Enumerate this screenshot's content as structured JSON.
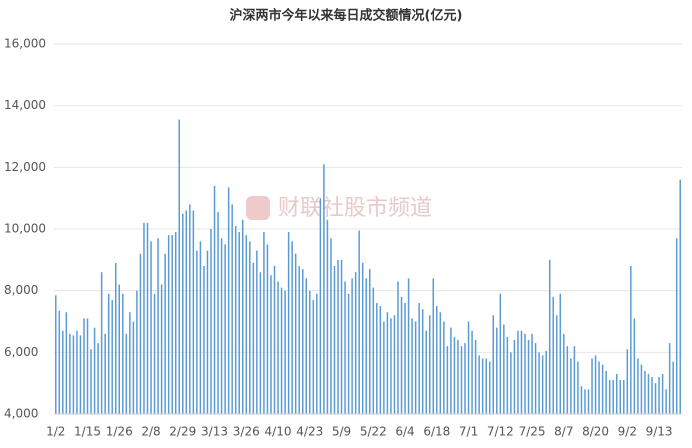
{
  "chart_data": {
    "type": "bar",
    "title": "沪深两市今年以来每日成交额情况(亿元)",
    "watermark": "财联社股市频道",
    "color": "#5b9bd5",
    "grid": true,
    "ylim": [
      4000,
      16000
    ],
    "yticks": [
      {
        "value": 4000,
        "label": "4,000"
      },
      {
        "value": 6000,
        "label": "6,000"
      },
      {
        "value": 8000,
        "label": "8,000"
      },
      {
        "value": 10000,
        "label": "10,000"
      },
      {
        "value": 12000,
        "label": "12,000"
      },
      {
        "value": 14000,
        "label": "14,000"
      },
      {
        "value": 16000,
        "label": "16,000"
      }
    ],
    "categories": [
      "1/2",
      null,
      null,
      null,
      null,
      null,
      null,
      null,
      null,
      "1/15",
      null,
      null,
      null,
      null,
      null,
      null,
      null,
      null,
      "1/26",
      null,
      null,
      null,
      null,
      null,
      null,
      null,
      null,
      "2/8",
      null,
      null,
      null,
      null,
      null,
      null,
      null,
      null,
      "2/29",
      null,
      null,
      null,
      null,
      null,
      null,
      null,
      null,
      "3/13",
      null,
      null,
      null,
      null,
      null,
      null,
      null,
      null,
      "3/26",
      null,
      null,
      null,
      null,
      null,
      null,
      null,
      null,
      "4/10",
      null,
      null,
      null,
      null,
      null,
      null,
      null,
      null,
      "4/23",
      null,
      null,
      null,
      null,
      null,
      null,
      null,
      null,
      "5/9",
      null,
      null,
      null,
      null,
      null,
      null,
      null,
      null,
      "5/22",
      null,
      null,
      null,
      null,
      null,
      null,
      null,
      null,
      "6/4",
      null,
      null,
      null,
      null,
      null,
      null,
      null,
      null,
      "6/18",
      null,
      null,
      null,
      null,
      null,
      null,
      null,
      null,
      "7/1",
      null,
      null,
      null,
      null,
      null,
      null,
      null,
      null,
      "7/12",
      null,
      null,
      null,
      null,
      null,
      null,
      null,
      null,
      "7/25",
      null,
      null,
      null,
      null,
      null,
      null,
      null,
      null,
      "8/7",
      null,
      null,
      null,
      null,
      null,
      null,
      null,
      null,
      "8/20",
      null,
      null,
      null,
      null,
      null,
      null,
      null,
      null,
      "9/2",
      null,
      null,
      null,
      null,
      null,
      null,
      null,
      null,
      "9/13",
      null,
      null,
      null,
      null,
      null,
      null
    ],
    "values": [
      7850,
      7350,
      6700,
      7300,
      6600,
      6550,
      6700,
      6550,
      7100,
      7100,
      6100,
      6800,
      6300,
      8600,
      6600,
      7900,
      7700,
      8900,
      8200,
      7900,
      6600,
      7300,
      7000,
      8000,
      9200,
      10200,
      10200,
      9600,
      7900,
      9700,
      8200,
      9200,
      9800,
      9800,
      9900,
      13550,
      10500,
      10600,
      10800,
      10600,
      9300,
      9600,
      8800,
      9300,
      10000,
      11400,
      10550,
      9700,
      9500,
      11350,
      10800,
      10100,
      9900,
      10300,
      9800,
      9600,
      8900,
      9300,
      8600,
      9900,
      9500,
      8500,
      8800,
      8300,
      8100,
      8000,
      9900,
      9600,
      9200,
      8800,
      8700,
      8400,
      8000,
      7700,
      7900,
      11000,
      12100,
      10300,
      9700,
      8800,
      9000,
      9000,
      8300,
      7900,
      8400,
      8600,
      9950,
      8900,
      8400,
      8700,
      8100,
      7600,
      7500,
      7000,
      7300,
      7100,
      7200,
      8300,
      7800,
      7600,
      8400,
      7100,
      7000,
      7600,
      7400,
      6700,
      7200,
      8400,
      7500,
      7300,
      7000,
      6200,
      6800,
      6500,
      6400,
      6200,
      6300,
      7000,
      6700,
      6400,
      5900,
      5800,
      5800,
      5700,
      7200,
      6800,
      7900,
      6900,
      6500,
      6000,
      6400,
      6700,
      6700,
      6600,
      6400,
      6600,
      6300,
      6000,
      5900,
      6050,
      9000,
      7800,
      7200,
      7900,
      6600,
      6200,
      5800,
      6200,
      5700,
      4900,
      4800,
      4800,
      5800,
      5900,
      5700,
      5600,
      5400,
      5100,
      5100,
      5300,
      5100,
      5100,
      6100,
      8800,
      7100,
      5800,
      5600,
      5400,
      5300,
      5200,
      5000,
      5200,
      5300,
      4800,
      6300,
      5700,
      9700,
      11600
    ]
  }
}
